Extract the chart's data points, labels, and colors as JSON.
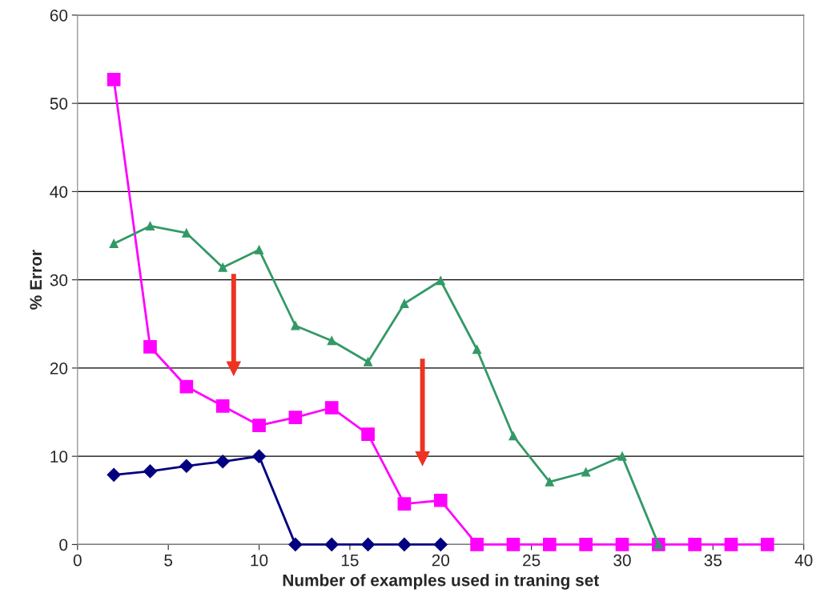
{
  "chart_data": {
    "type": "line",
    "xlabel": "Number of examples used in traning set",
    "ylabel": "% Error",
    "xlim": [
      0,
      40
    ],
    "xticks": [
      0,
      5,
      10,
      15,
      20,
      25,
      30,
      35,
      40
    ],
    "ylim": [
      0,
      60
    ],
    "yticks": [
      0,
      10,
      20,
      30,
      40,
      50,
      60
    ],
    "grid": "y",
    "legend": false,
    "series": [
      {
        "color": "#000080",
        "marker": "diamond",
        "x": [
          2,
          4,
          6,
          8,
          10,
          12,
          14,
          16,
          18,
          20
        ],
        "values": [
          7.9,
          8.3,
          8.9,
          9.4,
          10.0,
          0,
          0,
          0,
          0,
          0
        ]
      },
      {
        "color": "#ff00ff",
        "marker": "square",
        "x": [
          2,
          4,
          6,
          8,
          10,
          12,
          14,
          16,
          18,
          20,
          22,
          24,
          26,
          28,
          30,
          32,
          34,
          36,
          38
        ],
        "values": [
          52.7,
          22.4,
          17.9,
          15.7,
          13.5,
          14.4,
          15.5,
          12.5,
          4.6,
          5.0,
          0,
          0,
          0,
          0,
          0,
          0,
          0,
          0,
          0
        ]
      },
      {
        "color": "#339966",
        "marker": "triangle",
        "x": [
          2,
          4,
          6,
          8,
          10,
          12,
          14,
          16,
          18,
          20,
          22,
          24,
          26,
          28,
          30,
          32
        ],
        "values": [
          34.1,
          36.1,
          35.3,
          31.4,
          33.4,
          24.8,
          23.1,
          20.7,
          27.3,
          29.9,
          22.1,
          12.3,
          7.1,
          8.2,
          10.0,
          0
        ]
      }
    ]
  }
}
